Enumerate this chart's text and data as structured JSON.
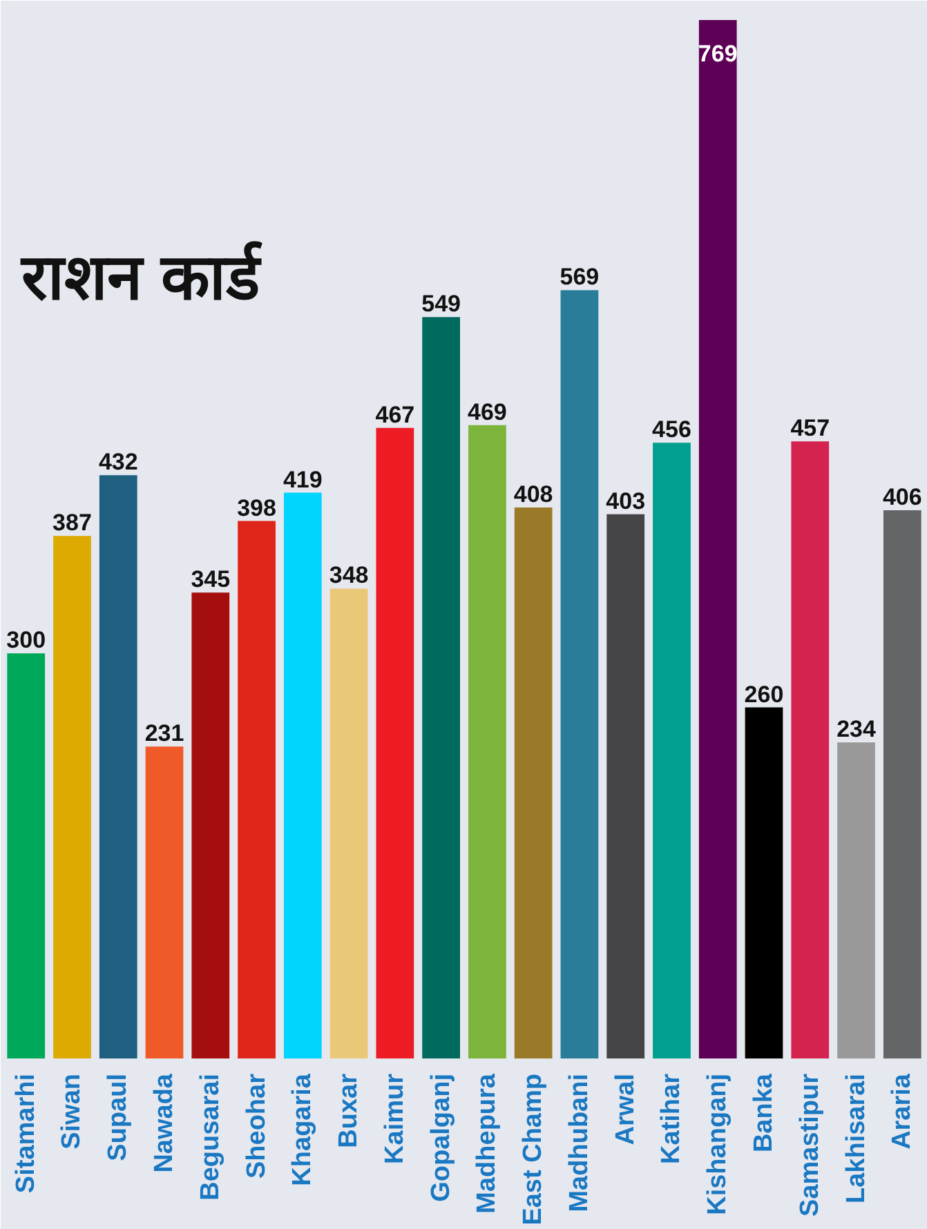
{
  "chart_data": {
    "type": "bar",
    "title": "राशन कार्ड",
    "categories": [
      "Sitamarhi",
      "Siwan",
      "Supaul",
      "Nawada",
      "Begusarai",
      "Sheohar",
      "Khagaria",
      "Buxar",
      "Kaimur",
      "Gopalganj",
      "Madhepura",
      "East Champ",
      "Madhubani",
      "Arwal",
      "Katihar",
      "Kishanganj",
      "Banka",
      "Samastipur",
      "Lakhisarai",
      "Araria"
    ],
    "values": [
      300,
      387,
      432,
      231,
      345,
      398,
      419,
      348,
      467,
      549,
      469,
      408,
      569,
      403,
      456,
      769,
      260,
      457,
      234,
      406
    ],
    "colors": [
      "#00a859",
      "#dcaa00",
      "#1f5f80",
      "#f05a28",
      "#a50e0e",
      "#e0251a",
      "#00d4ff",
      "#ebc878",
      "#ed1c24",
      "#006a5f",
      "#7cb43c",
      "#9a7a28",
      "#2a7d98",
      "#454547",
      "#00a090",
      "#5e0055",
      "#000000",
      "#d4234f",
      "#999999",
      "#636466"
    ],
    "data_labels": true
  }
}
